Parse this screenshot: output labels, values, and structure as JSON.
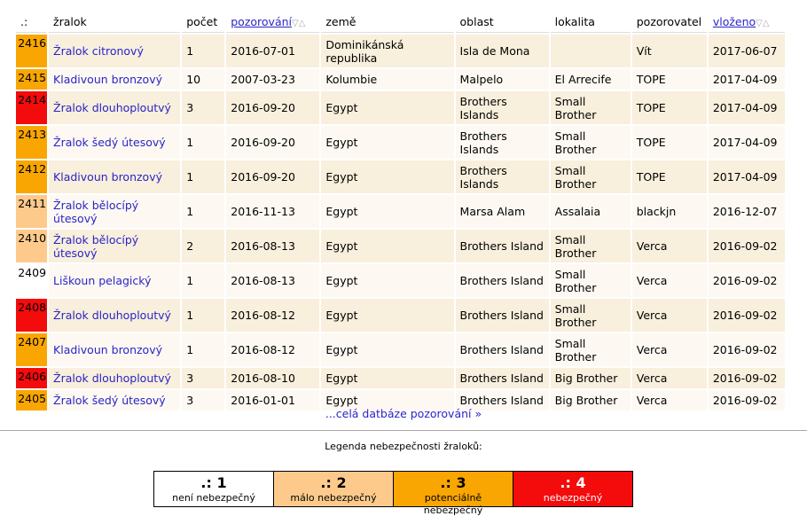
{
  "table": {
    "header": [
      {
        "label": ".:"
      },
      {
        "label": "žralok"
      },
      {
        "label": "počet"
      },
      {
        "label": "pozorování",
        "sort": "▽△"
      },
      {
        "label": "země"
      },
      {
        "label": "oblast"
      },
      {
        "label": "lokalita"
      },
      {
        "label": "pozorovatel"
      },
      {
        "label": "vloženo",
        "sort": "▽△"
      }
    ],
    "rows": [
      {
        "id": 2416,
        "color": "#f9a602",
        "cells": [
          "Žralok citronový",
          1,
          "2016-07-01",
          "Dominikánská republika",
          "Isla de Mona",
          null,
          "Vít",
          "2017-06-07"
        ]
      },
      {
        "id": 2415,
        "color": "#f9a602",
        "cells": [
          "Kladivoun bronzový",
          10,
          "2007-03-23",
          "Kolumbie",
          "Malpelo",
          "El Arrecife",
          "TOPE",
          "2017-04-09"
        ]
      },
      {
        "id": 2414,
        "color": "#f40b0b",
        "cells": [
          "Žralok dlouhoploutvý",
          3,
          "2016-09-20",
          "Egypt",
          "Brothers Islands",
          "Small Brother",
          "TOPE",
          "2017-04-09"
        ]
      },
      {
        "id": 2413,
        "color": "#f9a602",
        "cells": [
          "Žralok šedý útesový",
          1,
          "2016-09-20",
          "Egypt",
          "Brothers Islands",
          "Small Brother",
          "TOPE",
          "2017-04-09"
        ]
      },
      {
        "id": 2412,
        "color": "#f9a602",
        "cells": [
          "Kladivoun bronzový",
          1,
          "2016-09-20",
          "Egypt",
          "Brothers Islands",
          "Small Brother",
          "TOPE",
          "2017-04-09"
        ]
      },
      {
        "id": 2411,
        "color": "#fdca8c",
        "cells": [
          "Žralok bělocípý útesový",
          1,
          "2016-11-13",
          "Egypt",
          "Marsa Alam",
          "Assalaia",
          "blackjn",
          "2016-12-07"
        ]
      },
      {
        "id": 2410,
        "color": "#fdca8c",
        "cells": [
          "Žralok bělocípý útesový",
          2,
          "2016-08-13",
          "Egypt",
          "Brothers Island",
          "Small Brother",
          "Verca",
          "2016-09-02"
        ]
      },
      {
        "id": 2409,
        "color": "#ffffff",
        "cells": [
          "Liškoun pelagický",
          1,
          "2016-08-13",
          "Egypt",
          "Brothers Island",
          "Small Brother",
          "Verca",
          "2016-09-02"
        ]
      },
      {
        "id": 2408,
        "color": "#f40b0b",
        "cells": [
          "Žralok dlouhoploutvý",
          1,
          "2016-08-12",
          "Egypt",
          "Brothers Island",
          "Small Brother",
          "Verca",
          "2016-09-02"
        ]
      },
      {
        "id": 2407,
        "color": "#f9a602",
        "cells": [
          "Kladivoun bronzový",
          1,
          "2016-08-12",
          "Egypt",
          "Brothers Island",
          "Small Brother",
          "Verca",
          "2016-09-02"
        ]
      },
      {
        "id": 2406,
        "color": "#f40b0b",
        "cells": [
          "Žralok dlouhoploutvý",
          3,
          "2016-08-10",
          "Egypt",
          "Brothers Island",
          "Big Brother",
          "Verca",
          "2016-09-02"
        ]
      },
      {
        "id": 2405,
        "color": "#f9a602",
        "cells": [
          "Žralok šedý útesový",
          3,
          "2016-01-01",
          "Egypt",
          "Brothers Island",
          "Big Brother",
          "Verca",
          "2016-09-02"
        ]
      }
    ]
  },
  "more_link": "...celá datbáze pozorování »",
  "legend": {
    "title": "Legenda nebezpečnosti žraloků:",
    "items": [
      {
        "level": ".: 1",
        "label": "není nebezpečný",
        "color": "#ffffff"
      },
      {
        "level": ".: 2",
        "label": "málo nebezpečný",
        "color": "#fdca8c"
      },
      {
        "level": ".: 3",
        "label": "potenciálně nebezpečný",
        "color": "#f9a602"
      },
      {
        "level": ".: 4",
        "label": "nebezpečný",
        "color": "#f40b0b"
      }
    ]
  }
}
